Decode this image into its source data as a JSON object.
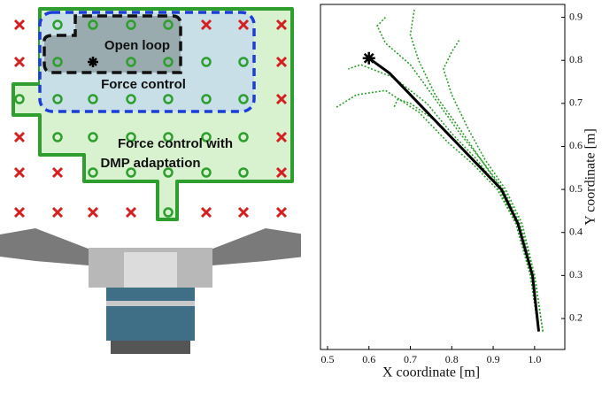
{
  "diagram": {
    "regions": {
      "open_loop": "Open loop",
      "force_control": "Force control",
      "force_dmp": [
        "Force control with",
        "DMP adaptation"
      ]
    }
  },
  "chart_data": {
    "type": "line",
    "xlabel": "X coordinate [m]",
    "ylabel": "Y coordinate [m]",
    "xlim": [
      0.483,
      1.073
    ],
    "ylim": [
      0.128,
      0.93
    ],
    "xticks": [
      0.5,
      0.6,
      0.7,
      0.8,
      0.9,
      {
        "value": 1,
        "label": "1.0"
      }
    ],
    "yticks": [
      0.2,
      0.3,
      0.4,
      0.5,
      0.6,
      0.7,
      0.8,
      0.9
    ],
    "series": [
      {
        "color": "#000000",
        "x": [
          1.01,
          0.995,
          0.96,
          0.92,
          0.86,
          0.8,
          0.72,
          0.65,
          0.6
        ],
        "values": [
          0.17,
          0.3,
          0.42,
          0.5,
          0.56,
          0.62,
          0.7,
          0.77,
          0.805
        ]
      },
      {
        "color": "#2e9e2e",
        "x": [
          1.02,
          1.0,
          0.965,
          0.925,
          0.87,
          0.82,
          0.76,
          0.72,
          0.7,
          0.71
        ],
        "values": [
          0.17,
          0.3,
          0.42,
          0.5,
          0.57,
          0.64,
          0.72,
          0.8,
          0.86,
          0.92
        ]
      },
      {
        "color": "#2e9e2e",
        "x": [
          1.01,
          0.99,
          0.955,
          0.915,
          0.86,
          0.8,
          0.74,
          0.66,
          0.58,
          0.55
        ],
        "values": [
          0.17,
          0.3,
          0.42,
          0.5,
          0.57,
          0.63,
          0.7,
          0.76,
          0.79,
          0.78
        ]
      },
      {
        "color": "#2e9e2e",
        "x": [
          1.01,
          0.99,
          0.955,
          0.91,
          0.85,
          0.79,
          0.72,
          0.64,
          0.57,
          0.52
        ],
        "values": [
          0.17,
          0.3,
          0.42,
          0.5,
          0.56,
          0.61,
          0.68,
          0.73,
          0.72,
          0.69
        ]
      },
      {
        "color": "#2e9e2e",
        "x": [
          1.01,
          0.995,
          0.96,
          0.92,
          0.86,
          0.81,
          0.76,
          0.7,
          0.67,
          0.66
        ],
        "values": [
          0.17,
          0.3,
          0.42,
          0.5,
          0.56,
          0.61,
          0.66,
          0.7,
          0.71,
          0.69
        ]
      },
      {
        "color": "#2e9e2e",
        "x": [
          1.02,
          1.0,
          0.97,
          0.93,
          0.88,
          0.84,
          0.8,
          0.78,
          0.8,
          0.82
        ],
        "values": [
          0.17,
          0.3,
          0.42,
          0.5,
          0.57,
          0.64,
          0.72,
          0.78,
          0.82,
          0.85
        ]
      },
      {
        "color": "#2e9e2e",
        "x": [
          1.01,
          0.99,
          0.96,
          0.92,
          0.87,
          0.82,
          0.76,
          0.7,
          0.64,
          0.62,
          0.64
        ],
        "values": [
          0.17,
          0.3,
          0.42,
          0.5,
          0.57,
          0.63,
          0.71,
          0.79,
          0.84,
          0.88,
          0.9
        ]
      }
    ]
  }
}
